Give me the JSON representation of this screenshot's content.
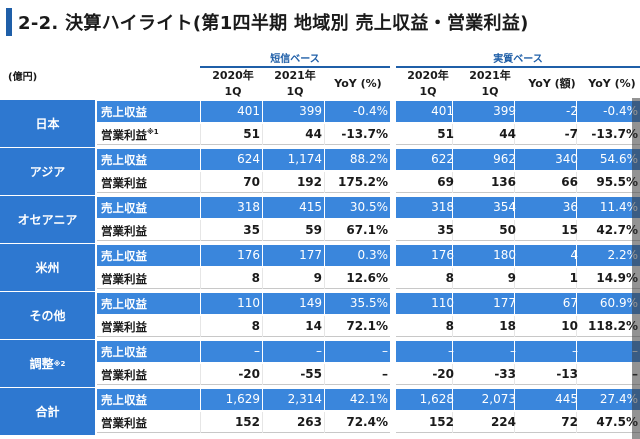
{
  "title": "2-2. 決算ハイライト(第1四半期 地域別 売上収益・営業利益)",
  "unit": "(億円)",
  "groups": {
    "tanshin": "短信ベース",
    "jisshitsu": "実質ベース"
  },
  "headers": {
    "y2020_a": "2020年",
    "y2020_b": "1Q",
    "y2021_a": "2021年",
    "y2021_b": "1Q",
    "yoy_pct": "YoY (%)",
    "yoy_amt": "YoY (額)",
    "yoy_pct2": "YoY (%)"
  },
  "colors": {
    "accent": "#1f5fa8",
    "region_bg": "#2e78d0",
    "revenue_row": "#3a86dc"
  },
  "rows": [
    {
      "region": "日本",
      "region_note": "",
      "revenue": {
        "label": "売上収益",
        "label_note": "",
        "t2020": "401",
        "t2021": "399",
        "tyoy": "-0.4%",
        "j2020": "401",
        "j2021": "399",
        "jyoy_amt": "-2",
        "jyoy_pct": "-0.4%"
      },
      "op": {
        "label": "営業利益",
        "label_note": "※1",
        "t2020": "51",
        "t2021": "44",
        "tyoy": "-13.7%",
        "j2020": "51",
        "j2021": "44",
        "jyoy_amt": "-7",
        "jyoy_pct": "-13.7%"
      }
    },
    {
      "region": "アジア",
      "region_note": "",
      "revenue": {
        "label": "売上収益",
        "label_note": "",
        "t2020": "624",
        "t2021": "1,174",
        "tyoy": "88.2%",
        "j2020": "622",
        "j2021": "962",
        "jyoy_amt": "340",
        "jyoy_pct": "54.6%"
      },
      "op": {
        "label": "営業利益",
        "label_note": "",
        "t2020": "70",
        "t2021": "192",
        "tyoy": "175.2%",
        "j2020": "69",
        "j2021": "136",
        "jyoy_amt": "66",
        "jyoy_pct": "95.5%"
      }
    },
    {
      "region": "オセアニア",
      "region_note": "",
      "revenue": {
        "label": "売上収益",
        "label_note": "",
        "t2020": "318",
        "t2021": "415",
        "tyoy": "30.5%",
        "j2020": "318",
        "j2021": "354",
        "jyoy_amt": "36",
        "jyoy_pct": "11.4%"
      },
      "op": {
        "label": "営業利益",
        "label_note": "",
        "t2020": "35",
        "t2021": "59",
        "tyoy": "67.1%",
        "j2020": "35",
        "j2021": "50",
        "jyoy_amt": "15",
        "jyoy_pct": "42.7%"
      }
    },
    {
      "region": "米州",
      "region_note": "",
      "revenue": {
        "label": "売上収益",
        "label_note": "",
        "t2020": "176",
        "t2021": "177",
        "tyoy": "0.3%",
        "j2020": "176",
        "j2021": "180",
        "jyoy_amt": "4",
        "jyoy_pct": "2.2%"
      },
      "op": {
        "label": "営業利益",
        "label_note": "",
        "t2020": "8",
        "t2021": "9",
        "tyoy": "12.6%",
        "j2020": "8",
        "j2021": "9",
        "jyoy_amt": "1",
        "jyoy_pct": "14.9%"
      }
    },
    {
      "region": "その他",
      "region_note": "",
      "revenue": {
        "label": "売上収益",
        "label_note": "",
        "t2020": "110",
        "t2021": "149",
        "tyoy": "35.5%",
        "j2020": "110",
        "j2021": "177",
        "jyoy_amt": "67",
        "jyoy_pct": "60.9%"
      },
      "op": {
        "label": "営業利益",
        "label_note": "",
        "t2020": "8",
        "t2021": "14",
        "tyoy": "72.1%",
        "j2020": "8",
        "j2021": "18",
        "jyoy_amt": "10",
        "jyoy_pct": "118.2%"
      }
    },
    {
      "region": "調整",
      "region_note": "※2",
      "revenue": {
        "label": "売上収益",
        "label_note": "",
        "t2020": "–",
        "t2021": "–",
        "tyoy": "–",
        "j2020": "–",
        "j2021": "–",
        "jyoy_amt": "–",
        "jyoy_pct": "–"
      },
      "op": {
        "label": "営業利益",
        "label_note": "",
        "t2020": "-20",
        "t2021": "-55",
        "tyoy": "–",
        "j2020": "-20",
        "j2021": "-33",
        "jyoy_amt": "-13",
        "jyoy_pct": "–"
      }
    },
    {
      "region": "合計",
      "region_note": "",
      "revenue": {
        "label": "売上収益",
        "label_note": "",
        "t2020": "1,629",
        "t2021": "2,314",
        "tyoy": "42.1%",
        "j2020": "1,628",
        "j2021": "2,073",
        "jyoy_amt": "445",
        "jyoy_pct": "27.4%"
      },
      "op": {
        "label": "営業利益",
        "label_note": "",
        "t2020": "152",
        "t2021": "263",
        "tyoy": "72.4%",
        "j2020": "152",
        "j2021": "224",
        "jyoy_amt": "72",
        "jyoy_pct": "47.5%"
      }
    }
  ]
}
